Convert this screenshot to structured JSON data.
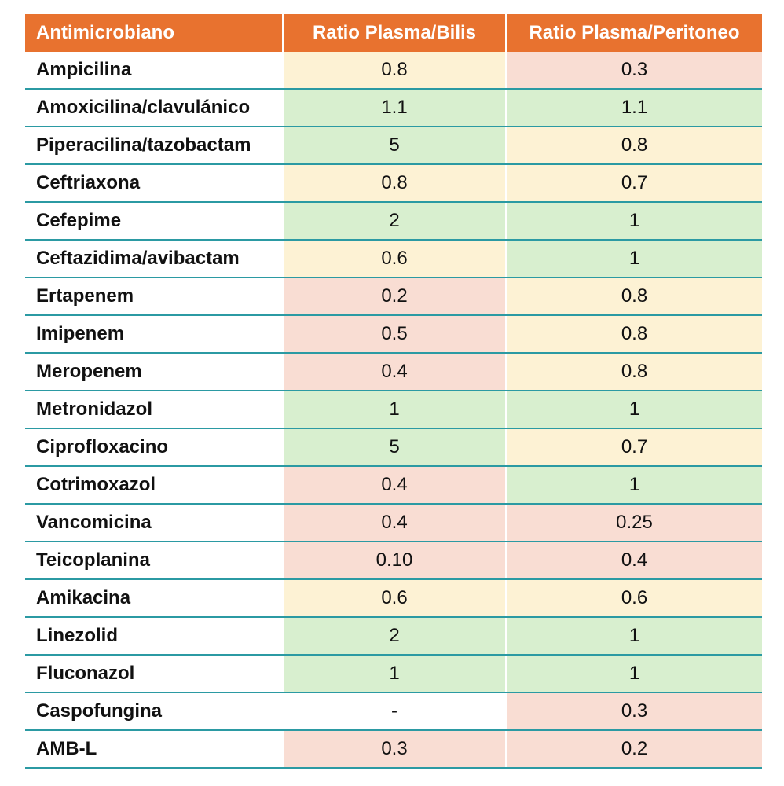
{
  "colors": {
    "header_bg": "#e8722f",
    "row_divider": "#2b9aa3",
    "green": "#d8efcf",
    "yellow": "#fdf2d4",
    "red": "#f9ddd3"
  },
  "header": {
    "col0": "Antimicrobiano",
    "col1": "Ratio Plasma/Bilis",
    "col2": "Ratio Plasma/Peritoneo"
  },
  "rows": [
    {
      "name": "Ampicilina",
      "bilis": "0.8",
      "bilis_level": "yellow",
      "peritoneo": "0.3",
      "peritoneo_level": "red"
    },
    {
      "name": "Amoxicilina/clavulánico",
      "bilis": "1.1",
      "bilis_level": "green",
      "peritoneo": "1.1",
      "peritoneo_level": "green"
    },
    {
      "name": "Piperacilina/tazobactam",
      "bilis": "5",
      "bilis_level": "green",
      "peritoneo": "0.8",
      "peritoneo_level": "yellow"
    },
    {
      "name": "Ceftriaxona",
      "bilis": "0.8",
      "bilis_level": "yellow",
      "peritoneo": "0.7",
      "peritoneo_level": "yellow"
    },
    {
      "name": "Cefepime",
      "bilis": "2",
      "bilis_level": "green",
      "peritoneo": "1",
      "peritoneo_level": "green"
    },
    {
      "name": "Ceftazidima/avibactam",
      "bilis": "0.6",
      "bilis_level": "yellow",
      "peritoneo": "1",
      "peritoneo_level": "green"
    },
    {
      "name": "Ertapenem",
      "bilis": "0.2",
      "bilis_level": "red",
      "peritoneo": "0.8",
      "peritoneo_level": "yellow"
    },
    {
      "name": "Imipenem",
      "bilis": "0.5",
      "bilis_level": "red",
      "peritoneo": "0.8",
      "peritoneo_level": "yellow"
    },
    {
      "name": "Meropenem",
      "bilis": "0.4",
      "bilis_level": "red",
      "peritoneo": "0.8",
      "peritoneo_level": "yellow"
    },
    {
      "name": "Metronidazol",
      "bilis": "1",
      "bilis_level": "green",
      "peritoneo": "1",
      "peritoneo_level": "green"
    },
    {
      "name": "Ciprofloxacino",
      "bilis": "5",
      "bilis_level": "green",
      "peritoneo": "0.7",
      "peritoneo_level": "yellow"
    },
    {
      "name": "Cotrimoxazol",
      "bilis": "0.4",
      "bilis_level": "red",
      "peritoneo": "1",
      "peritoneo_level": "green"
    },
    {
      "name": "Vancomicina",
      "bilis": "0.4",
      "bilis_level": "red",
      "peritoneo": "0.25",
      "peritoneo_level": "red"
    },
    {
      "name": "Teicoplanina",
      "bilis": "0.10",
      "bilis_level": "red",
      "peritoneo": "0.4",
      "peritoneo_level": "red"
    },
    {
      "name": "Amikacina",
      "bilis": "0.6",
      "bilis_level": "yellow",
      "peritoneo": "0.6",
      "peritoneo_level": "yellow"
    },
    {
      "name": "Linezolid",
      "bilis": "2",
      "bilis_level": "green",
      "peritoneo": "1",
      "peritoneo_level": "green"
    },
    {
      "name": "Fluconazol",
      "bilis": "1",
      "bilis_level": "green",
      "peritoneo": "1",
      "peritoneo_level": "green"
    },
    {
      "name": "Caspofungina",
      "bilis": "-",
      "bilis_level": "none",
      "peritoneo": "0.3",
      "peritoneo_level": "red"
    },
    {
      "name": "AMB-L",
      "bilis": "0.3",
      "bilis_level": "red",
      "peritoneo": "0.2",
      "peritoneo_level": "red"
    }
  ]
}
